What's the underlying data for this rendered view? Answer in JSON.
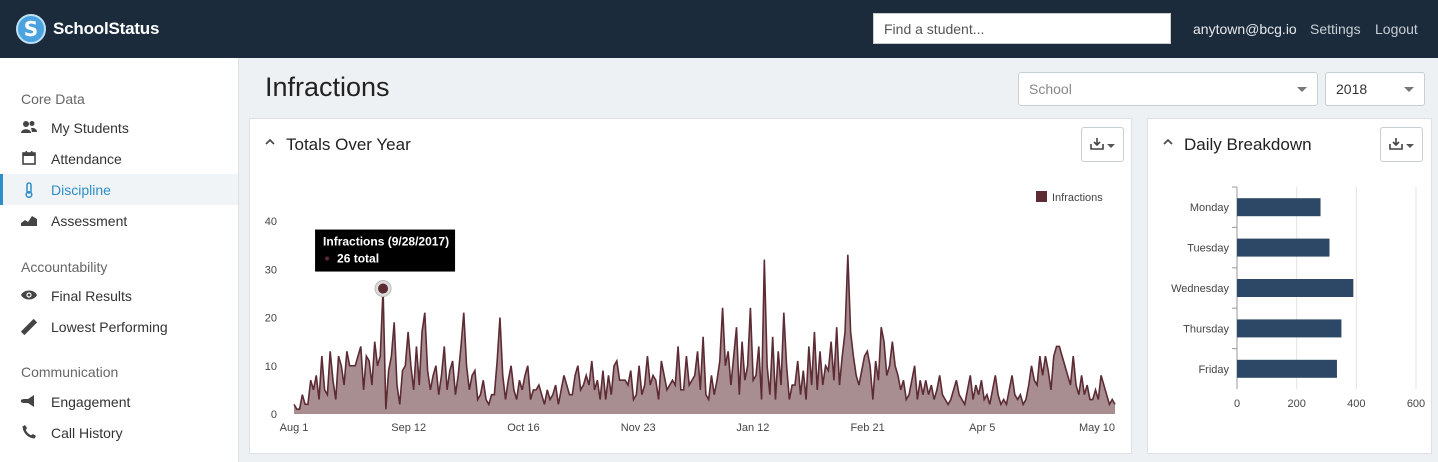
{
  "app": {
    "brand": "SchoolStatus",
    "logo_letter": "S",
    "search_placeholder": "Find a student...",
    "user_email": "anytown@bcg.io",
    "settings_label": "Settings",
    "logout_label": "Logout"
  },
  "sidebar": {
    "sections": [
      {
        "heading": "Core Data",
        "items": [
          {
            "label": "My Students",
            "icon": "students-icon"
          },
          {
            "label": "Attendance",
            "icon": "calendar-icon"
          },
          {
            "label": "Discipline",
            "icon": "thermometer-icon",
            "active": true
          },
          {
            "label": "Assessment",
            "icon": "area-chart-icon"
          }
        ]
      },
      {
        "heading": "Accountability",
        "items": [
          {
            "label": "Final Results",
            "icon": "eye-icon"
          },
          {
            "label": "Lowest Performing",
            "icon": "ruler-icon"
          }
        ]
      },
      {
        "heading": "Communication",
        "items": [
          {
            "label": "Engagement",
            "icon": "megaphone-icon"
          },
          {
            "label": "Call History",
            "icon": "phone-icon"
          }
        ]
      }
    ]
  },
  "header": {
    "title": "Infractions",
    "school_select_placeholder": "School",
    "year_select_value": "2018"
  },
  "colors": {
    "topbar": "#1b2b3c",
    "accent": "#2e8fc8",
    "area_fill": "#a88e90",
    "area_line": "#5c2b34",
    "bar_fill": "#2d4766"
  },
  "panels": {
    "totals_title": "Totals Over Year",
    "daily_title": "Daily Breakdown"
  },
  "chart_data": [
    {
      "type": "area",
      "title": "Totals Over Year",
      "series": [
        {
          "name": "Infractions",
          "values": [
            2,
            1,
            1,
            4,
            2,
            2,
            7,
            5,
            8,
            3,
            12,
            5,
            4,
            13,
            7,
            3,
            12,
            10,
            6,
            13,
            10,
            10,
            10,
            12,
            14,
            5,
            12,
            11,
            6,
            15,
            10,
            12,
            26,
            1,
            9,
            12,
            19,
            6,
            2,
            9,
            10,
            17,
            10,
            5,
            14,
            6,
            17,
            21,
            9,
            5,
            8,
            10,
            4,
            8,
            14,
            5,
            9,
            11,
            4,
            8,
            14,
            21,
            10,
            5,
            8,
            9,
            3,
            4,
            7,
            3,
            2,
            4,
            4,
            11,
            20,
            8,
            3,
            7,
            10,
            5,
            3,
            7,
            5,
            8,
            10,
            3,
            5,
            5,
            6,
            4,
            2,
            5,
            3,
            4,
            6,
            2,
            5,
            8,
            6,
            4,
            4,
            8,
            10,
            5,
            6,
            8,
            6,
            11,
            5,
            7,
            3,
            9,
            3,
            8,
            4,
            10,
            11,
            7,
            7,
            7,
            6,
            9,
            3,
            4,
            10,
            4,
            6,
            12,
            6,
            8,
            7,
            3,
            11,
            8,
            5,
            6,
            7,
            6,
            14,
            5,
            5,
            12,
            6,
            7,
            8,
            13,
            5,
            16,
            4,
            3,
            8,
            4,
            7,
            11,
            22,
            10,
            13,
            6,
            12,
            18,
            4,
            15,
            7,
            10,
            22,
            7,
            8,
            14,
            3,
            32,
            10,
            4,
            16,
            3,
            13,
            6,
            21,
            10,
            3,
            6,
            6,
            11,
            4,
            9,
            3,
            14,
            6,
            17,
            5,
            13,
            6,
            10,
            9,
            15,
            7,
            18,
            6,
            12,
            17,
            33,
            17,
            12,
            8,
            6,
            9,
            12,
            13,
            10,
            3,
            11,
            7,
            18,
            15,
            8,
            10,
            15,
            10,
            8,
            5,
            7,
            3,
            4,
            7,
            10,
            3,
            7,
            4,
            7,
            4,
            6,
            3,
            5,
            8,
            4,
            3,
            2,
            3,
            5,
            7,
            4,
            3,
            2,
            5,
            8,
            3,
            6,
            4,
            7,
            3,
            4,
            2,
            5,
            8,
            4,
            2,
            3,
            2,
            5,
            8,
            4,
            3,
            4,
            2,
            3,
            6,
            10,
            7,
            6,
            12,
            8,
            12,
            9,
            5,
            12,
            14,
            14,
            12,
            10,
            8,
            6,
            12,
            6,
            4,
            8,
            4,
            6,
            3,
            3,
            5,
            3,
            8,
            6,
            4,
            2,
            3,
            2
          ]
        }
      ],
      "x_tick_labels": [
        "Aug 1",
        "Sep 12",
        "Oct 16",
        "Nov 23",
        "Jan 12",
        "Feb 21",
        "Apr 5",
        "May 10"
      ],
      "y_ticks": [
        0,
        10,
        20,
        30,
        40
      ],
      "ylim": [
        0,
        40
      ],
      "legend": {
        "label": "Infractions",
        "position": "top-right"
      },
      "tooltip": {
        "title": "Infractions (9/28/2017)",
        "value_text": "26 total",
        "point_index": 32
      }
    },
    {
      "type": "bar",
      "orientation": "horizontal",
      "title": "Daily Breakdown",
      "categories": [
        "Monday",
        "Tuesday",
        "Wednesday",
        "Thursday",
        "Friday"
      ],
      "values": [
        280,
        310,
        390,
        350,
        335
      ],
      "x_ticks": [
        0,
        200,
        400,
        600
      ],
      "xlim": [
        0,
        600
      ]
    }
  ]
}
